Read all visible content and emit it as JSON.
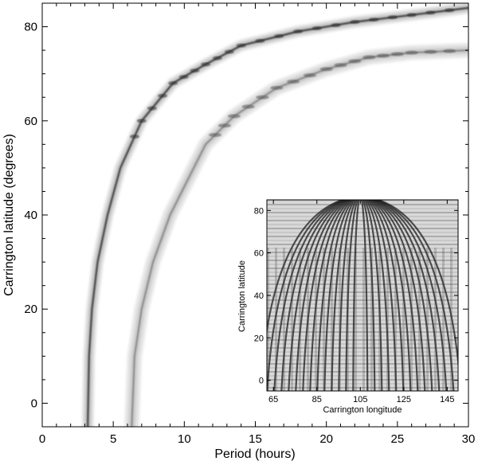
{
  "chart_data": [
    {
      "type": "heatmap",
      "panel": "main",
      "xlabel": "Period (hours)",
      "ylabel": "Carrington latitude (degrees)",
      "xlim": [
        0,
        30
      ],
      "ylim": [
        -5,
        85
      ],
      "x_ticks": [
        "0",
        "5",
        "10",
        "15",
        "20",
        "25",
        "30"
      ],
      "y_ticks": [
        "0",
        "20",
        "40",
        "60",
        "80"
      ],
      "colormap": "grayscale (white low, black high)",
      "grid": false,
      "ridges": [
        {
          "points": [
            [
              3.2,
              -5
            ],
            [
              3.3,
              10
            ],
            [
              3.5,
              20
            ],
            [
              3.9,
              30
            ],
            [
              4.6,
              40
            ],
            [
              5.5,
              50
            ],
            [
              7.0,
              60
            ],
            [
              9.2,
              68
            ],
            [
              11.5,
              72
            ],
            [
              14.0,
              76
            ],
            [
              18.0,
              79
            ],
            [
              22.0,
              81
            ],
            [
              26.0,
              82.5
            ],
            [
              30.0,
              84
            ]
          ]
        },
        {
          "points": [
            [
              6.3,
              -5
            ],
            [
              6.5,
              10
            ],
            [
              7.0,
              20
            ],
            [
              7.8,
              30
            ],
            [
              9.0,
              40
            ],
            [
              10.0,
              46
            ],
            [
              11.5,
              55
            ],
            [
              13.5,
              61
            ],
            [
              16.5,
              67
            ],
            [
              20.0,
              71
            ],
            [
              23.0,
              73.5
            ],
            [
              26.0,
              74.5
            ],
            [
              30.0,
              75
            ]
          ]
        }
      ]
    },
    {
      "type": "heatmap",
      "panel": "inset",
      "xlabel": "Carrington longitude",
      "ylabel": "Carrington latitude",
      "xlim": [
        62,
        150
      ],
      "ylim": [
        -5,
        85
      ],
      "x_ticks": [
        "65",
        "85",
        "105",
        "125",
        "145"
      ],
      "y_ticks": [
        "0",
        "20",
        "40",
        "60",
        "80"
      ],
      "colormap": "grayscale",
      "grid": false
    }
  ]
}
